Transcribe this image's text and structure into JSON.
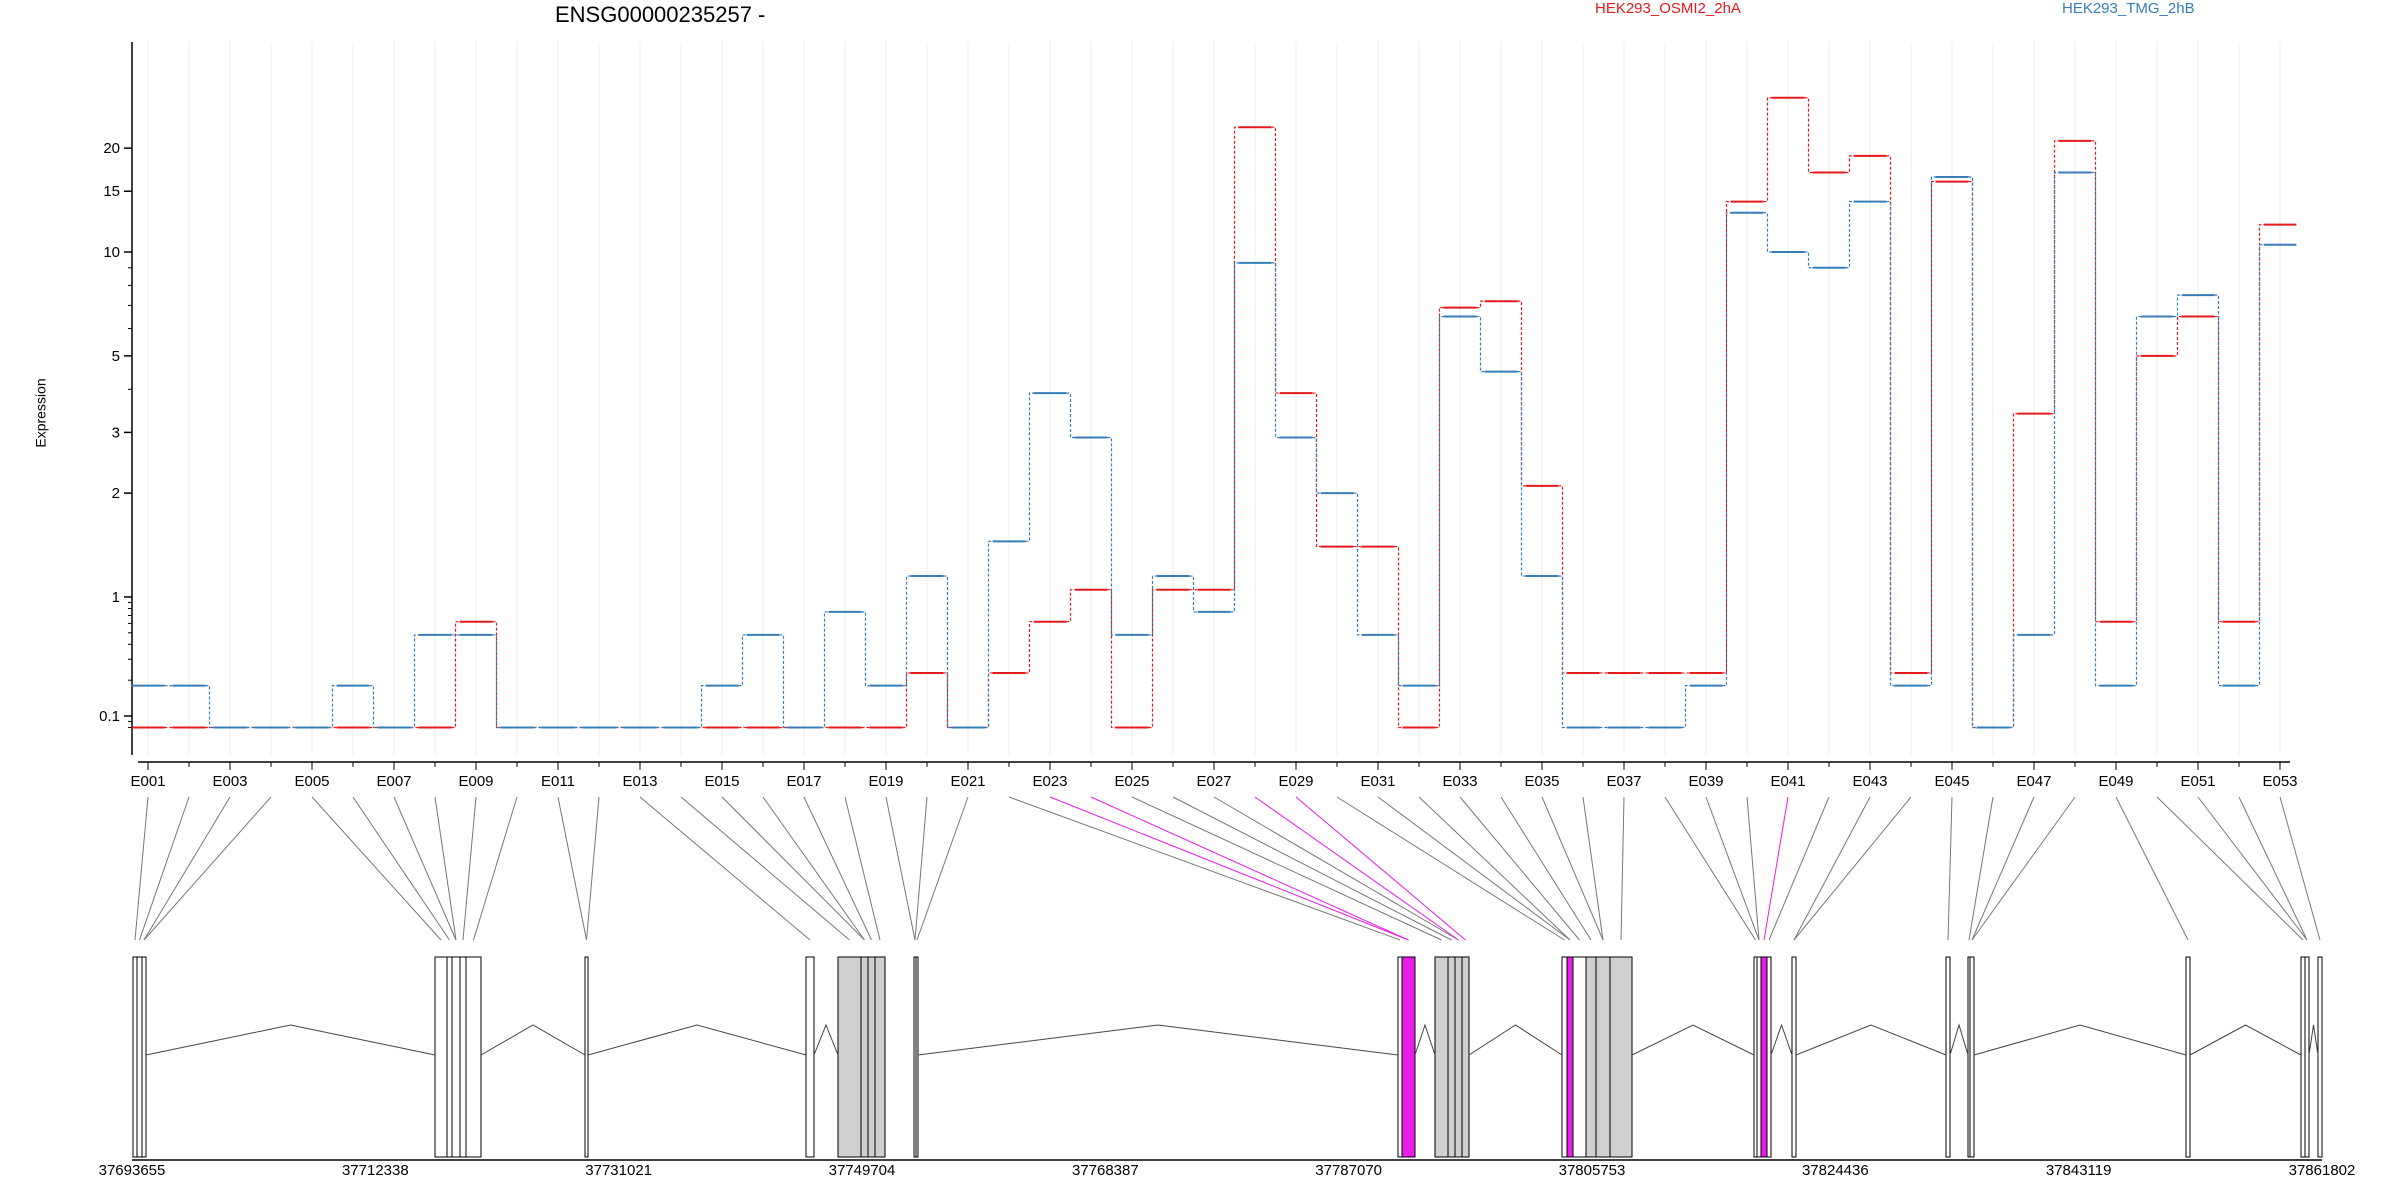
{
  "chart_data": {
    "type": "line",
    "title": "ENSG00000235257 -",
    "xlabel": "",
    "ylabel": "Expression",
    "y_scale": "log",
    "ylim": [
      0.08,
      30
    ],
    "yticks": [
      0.1,
      1,
      2,
      3,
      5,
      10,
      15,
      20
    ],
    "grid": "vertical",
    "legend_position": "top-right",
    "categories": [
      "E001",
      "E002",
      "E003",
      "E004",
      "E005",
      "E006",
      "E007",
      "E008",
      "E009",
      "E010",
      "E011",
      "E012",
      "E013",
      "E014",
      "E015",
      "E016",
      "E017",
      "E018",
      "E019",
      "E020",
      "E021",
      "E022",
      "E023",
      "E024",
      "E025",
      "E026",
      "E027",
      "E028",
      "E029",
      "E030",
      "E031",
      "E032",
      "E033",
      "E034",
      "E035",
      "E036",
      "E037",
      "E038",
      "E039",
      "E040",
      "E041",
      "E042",
      "E043",
      "E044",
      "E045",
      "E046",
      "E047",
      "E048",
      "E049",
      "E050",
      "E051",
      "E052",
      "E053"
    ],
    "tick_labels": [
      "E001",
      "E003",
      "E005",
      "E007",
      "E009",
      "E011",
      "E013",
      "E015",
      "E017",
      "E019",
      "E021",
      "E023",
      "E025",
      "E027",
      "E029",
      "E031",
      "E033",
      "E035",
      "E037",
      "E039",
      "E041",
      "E043",
      "E045",
      "E047",
      "E049",
      "E051",
      "E053"
    ],
    "series": [
      {
        "name": "HEK293_OSMI2_2hA",
        "color": "#e41a1c",
        "values": [
          0.08,
          0.08,
          0.08,
          0.08,
          0.08,
          0.08,
          0.08,
          0.08,
          0.62,
          0.08,
          0.08,
          0.08,
          0.08,
          0.08,
          0.08,
          0.08,
          0.08,
          0.08,
          0.08,
          0.23,
          0.08,
          0.23,
          0.62,
          1.05,
          0.08,
          1.05,
          1.05,
          23.0,
          3.9,
          1.4,
          1.4,
          0.08,
          6.9,
          7.2,
          2.1,
          0.23,
          0.23,
          0.23,
          0.23,
          14.0,
          28.0,
          17.0,
          19.0,
          0.23,
          16.0,
          0.08,
          3.4,
          21.0,
          0.62,
          5.0,
          6.5,
          0.62,
          12.0
        ]
      },
      {
        "name": "HEK293_TMG_2hB",
        "color": "#377eb8",
        "values": [
          0.18,
          0.18,
          0.08,
          0.08,
          0.08,
          0.18,
          0.08,
          0.48,
          0.48,
          0.08,
          0.08,
          0.08,
          0.08,
          0.08,
          0.18,
          0.48,
          0.08,
          0.75,
          0.18,
          1.15,
          0.08,
          1.45,
          3.9,
          2.9,
          0.48,
          1.15,
          0.75,
          9.3,
          2.9,
          2.0,
          0.48,
          0.18,
          6.5,
          4.5,
          1.15,
          0.08,
          0.08,
          0.08,
          0.18,
          13.0,
          10.0,
          9.0,
          14.0,
          0.18,
          16.5,
          0.08,
          0.48,
          17.0,
          0.18,
          6.5,
          7.5,
          0.18,
          10.5
        ]
      }
    ],
    "genomic_axis_labels": [
      "37693655",
      "37712338",
      "37731021",
      "37749704",
      "37768387",
      "37787070",
      "37805753",
      "37824436",
      "37843119",
      "37861802"
    ]
  },
  "colors": {
    "highlight": "#e81ee8",
    "exon_fill": "#d0d0d0",
    "axis": "#000000",
    "grid": "#eeeeee"
  }
}
